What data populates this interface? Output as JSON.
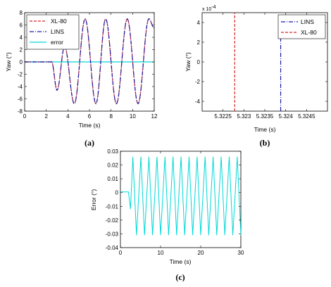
{
  "chart_data": [
    {
      "type": "line",
      "panel": "(a)",
      "xlabel": "Time (s)",
      "ylabel": "Yaw (°)",
      "xlim": [
        0,
        12
      ],
      "ylim": [
        -8,
        8
      ],
      "xticks": [
        "0",
        "2",
        "4",
        "6",
        "8",
        "10",
        "12"
      ],
      "yticks": [
        "8",
        "6",
        "4",
        "2",
        "0",
        "-2",
        "-4",
        "-6",
        "-8"
      ],
      "legend_position": "top-left",
      "series": [
        {
          "name": "XL-80",
          "color": "#dd2222",
          "style": "dashed",
          "x": [
            0,
            2.5,
            3.0,
            3.7,
            4.6,
            5.6,
            6.6,
            7.5,
            8.5,
            9.5,
            10.5,
            11.5,
            12
          ],
          "y": [
            0,
            0,
            -4.6,
            2.5,
            -6.8,
            7.0,
            -6.8,
            7.0,
            -6.8,
            7.0,
            -6.8,
            7.0,
            5.5
          ]
        },
        {
          "name": "LINS",
          "color": "#1a1aaa",
          "style": "dash-dot",
          "x": [
            0,
            2.5,
            3.0,
            3.7,
            4.6,
            5.6,
            6.6,
            7.5,
            8.5,
            9.5,
            10.5,
            11.5,
            12
          ],
          "y": [
            0,
            0,
            -4.6,
            2.5,
            -6.8,
            7.0,
            -6.8,
            7.0,
            -6.8,
            7.0,
            -6.8,
            7.0,
            5.5
          ]
        },
        {
          "name": "error",
          "color": "#00d8d8",
          "style": "solid",
          "x": [
            0,
            12
          ],
          "y": [
            0,
            0
          ]
        }
      ]
    },
    {
      "type": "line",
      "panel": "(b)",
      "xlabel": "Time (s)",
      "ylabel": "Yaw (°)",
      "xlim": [
        5.322,
        5.325
      ],
      "ylim": [
        -5,
        5
      ],
      "y_exponent": "x 10",
      "y_exponent_power": "-4",
      "xticks": [
        "5.3225",
        "5.323",
        "5.3235",
        "5.324",
        "5.3245"
      ],
      "yticks": [
        "4",
        "2",
        "0",
        "-2",
        "-4"
      ],
      "legend_position": "top-right",
      "series": [
        {
          "name": "LINS",
          "color": "#1a1aaa",
          "style": "dash-dot",
          "x": [
            5.32388,
            5.32388
          ],
          "y": [
            -5,
            2.6
          ]
        },
        {
          "name": "XL-80",
          "color": "#dd2222",
          "style": "dashed",
          "x": [
            5.32278,
            5.32278
          ],
          "y": [
            -5,
            5
          ]
        }
      ]
    },
    {
      "type": "line",
      "panel": "(c)",
      "xlabel": "Time (s)",
      "ylabel": "Error (°)",
      "xlim": [
        0,
        30
      ],
      "ylim": [
        -0.04,
        0.03
      ],
      "xticks": [
        "0",
        "10",
        "20",
        "30"
      ],
      "yticks": [
        "0.03",
        "0.02",
        "0.01",
        "0",
        "-0.01",
        "-0.02",
        "-0.03",
        "-0.04"
      ],
      "series": [
        {
          "name": "",
          "color": "#00d8d8",
          "style": "solid",
          "x": [
            0,
            2.0,
            2.5,
            30
          ],
          "y": [
            0.0005,
            0.0005,
            -0.012,
            0.026
          ],
          "period_s": 2.0,
          "amplitude_max": 0.026,
          "amplitude_min": -0.031
        }
      ]
    }
  ],
  "captions": {
    "a": "(a)",
    "b": "(b)",
    "c": "(c)"
  }
}
